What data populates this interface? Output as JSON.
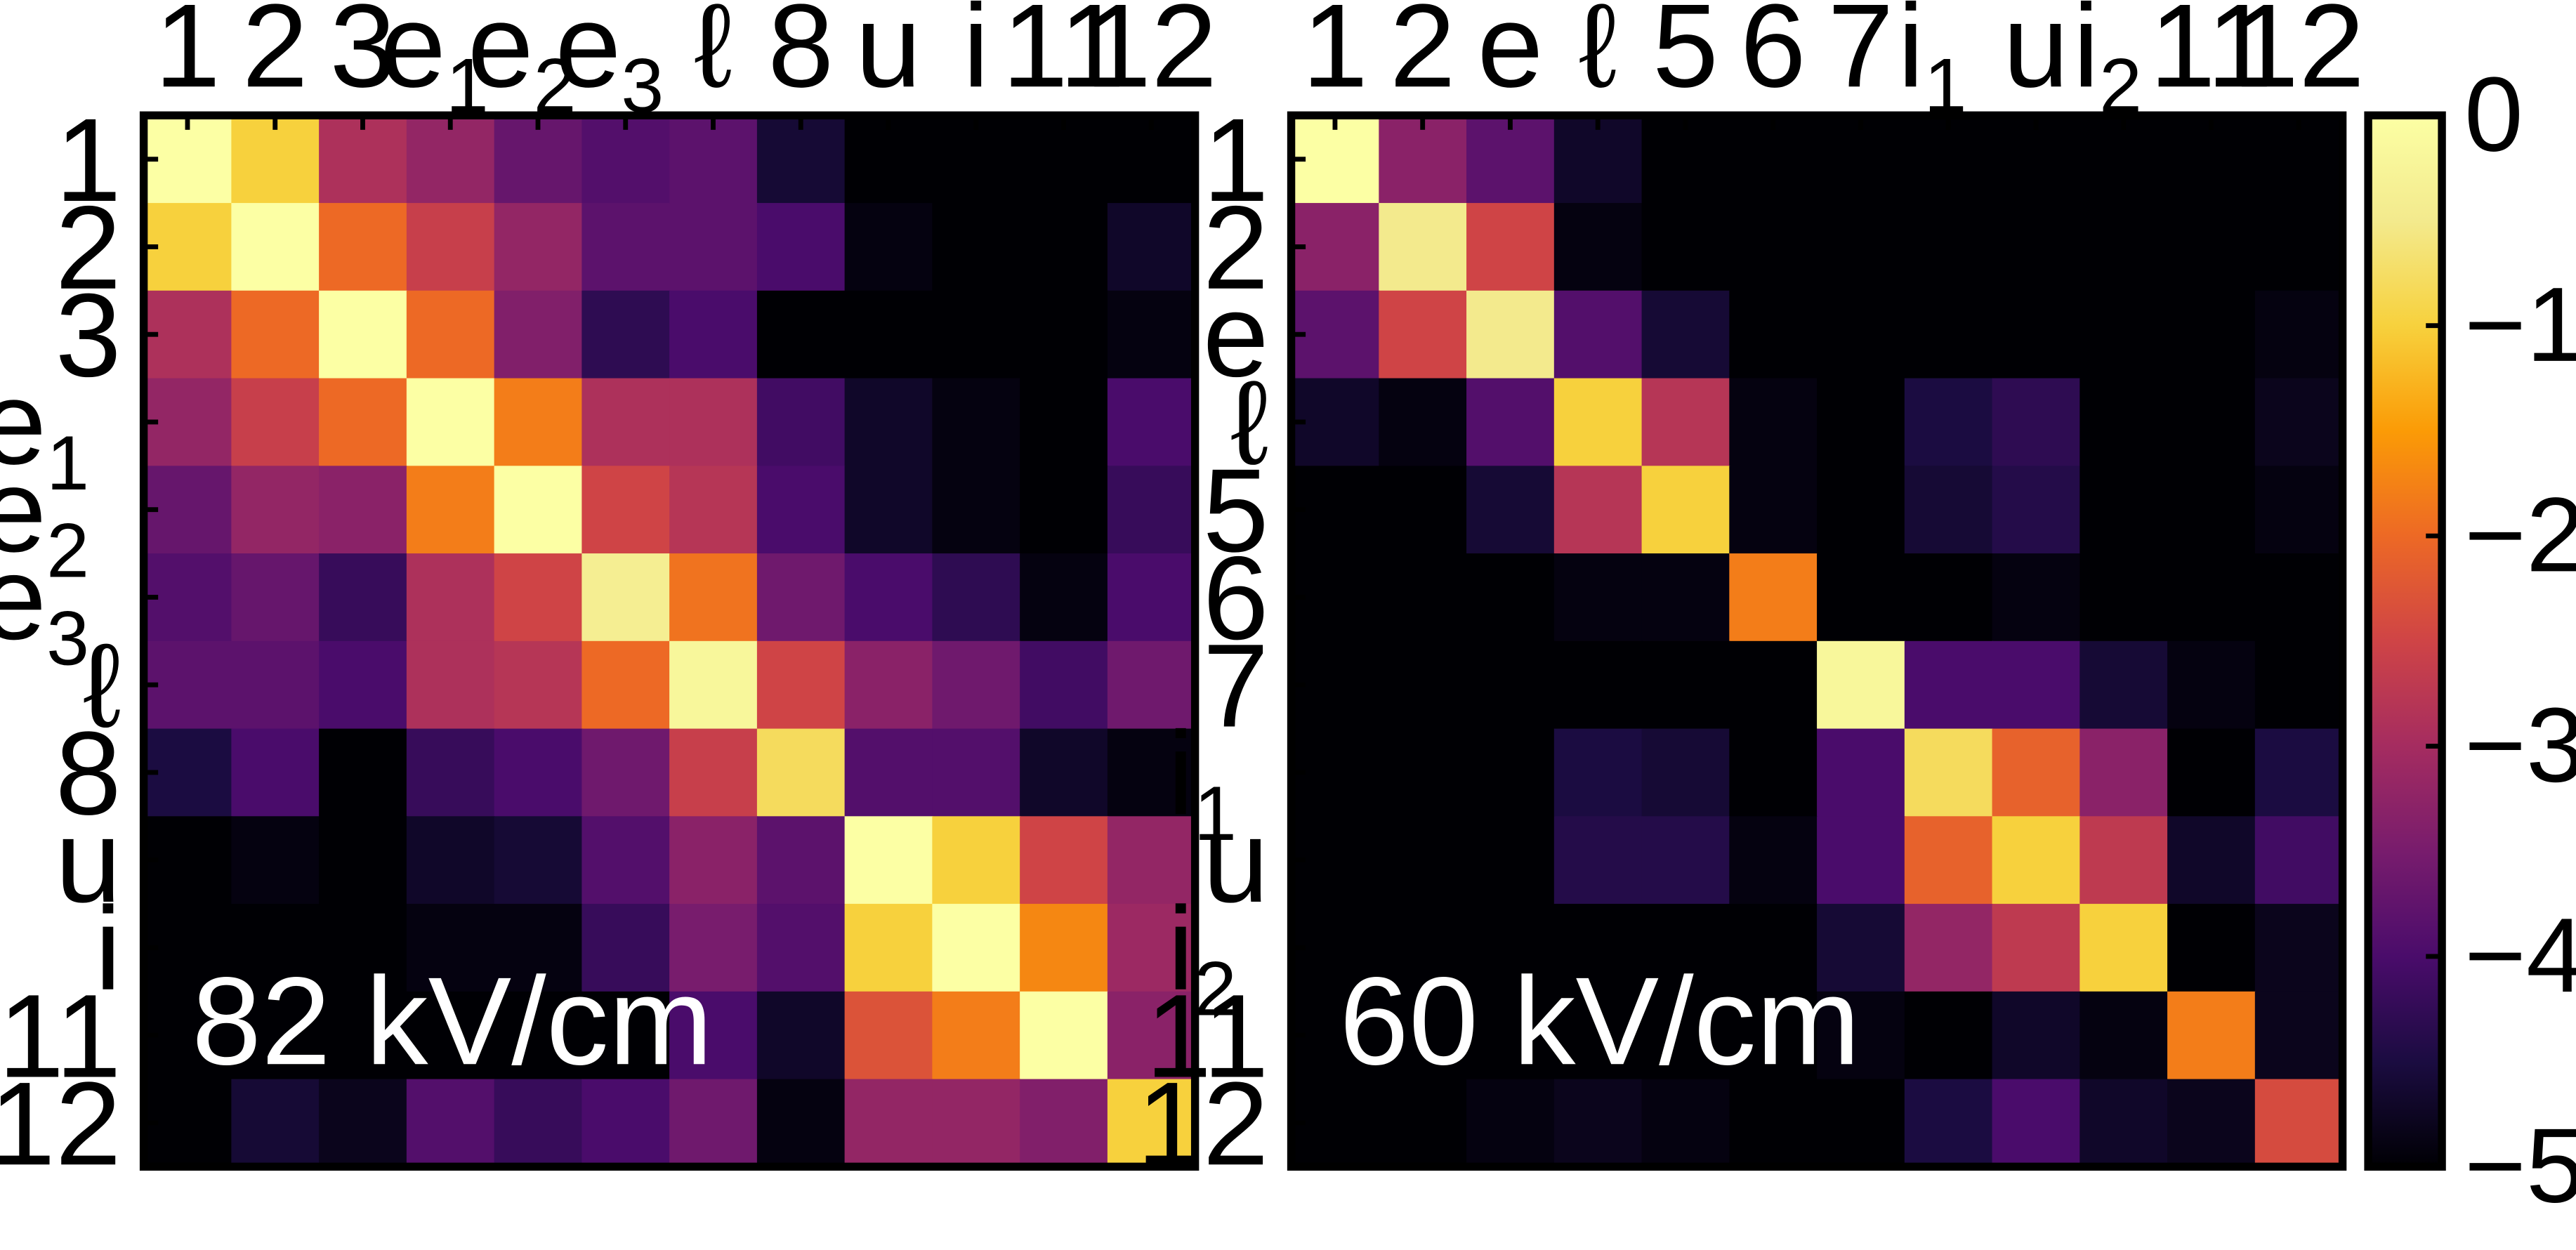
{
  "chart_data": [
    {
      "type": "heatmap",
      "annotation": "82 kV/cm",
      "x_labels": [
        [
          "1",
          ""
        ],
        [
          "2",
          ""
        ],
        [
          "3",
          ""
        ],
        [
          "e",
          "1"
        ],
        [
          "e",
          "2"
        ],
        [
          "e",
          "3"
        ],
        [
          "ℓ",
          ""
        ],
        [
          "8",
          ""
        ],
        [
          "u",
          ""
        ],
        [
          "i",
          ""
        ],
        [
          "11",
          ""
        ],
        [
          "12",
          ""
        ]
      ],
      "y_labels": [
        [
          "1",
          ""
        ],
        [
          "2",
          ""
        ],
        [
          "3",
          ""
        ],
        [
          "e",
          "1"
        ],
        [
          "e",
          "2"
        ],
        [
          "e",
          "3"
        ],
        [
          "ℓ",
          ""
        ],
        [
          "8",
          ""
        ],
        [
          "u",
          ""
        ],
        [
          "i",
          ""
        ],
        [
          "11",
          ""
        ],
        [
          "12",
          ""
        ]
      ],
      "values": [
        [
          0,
          -1,
          -2.9,
          -3.2,
          -3.7,
          -3.9,
          -3.8,
          -4.6,
          -5,
          -5,
          -5,
          -5
        ],
        [
          -1,
          0,
          -2,
          -2.6,
          -3.2,
          -3.8,
          -3.8,
          -4,
          -4.9,
          -5,
          -5,
          -4.7
        ],
        [
          -2.9,
          -2,
          0,
          -2,
          -3.4,
          -4.3,
          -4,
          -5,
          -5,
          -5,
          -5,
          -4.9
        ],
        [
          -3.2,
          -2.6,
          -2,
          0,
          -1.8,
          -2.9,
          -2.9,
          -4.1,
          -4.7,
          -4.9,
          -5,
          -4
        ],
        [
          -3.7,
          -3.2,
          -3.3,
          -1.8,
          0,
          -2.5,
          -2.8,
          -4,
          -4.7,
          -4.9,
          -5,
          -4.2
        ],
        [
          -3.9,
          -3.7,
          -4.2,
          -2.9,
          -2.5,
          -0.4,
          -1.9,
          -3.6,
          -4,
          -4.3,
          -4.9,
          -4
        ],
        [
          -3.8,
          -3.8,
          -4,
          -2.9,
          -2.8,
          -2,
          -0.2,
          -2.5,
          -3.3,
          -3.6,
          -4.1,
          -3.6
        ],
        [
          -4.5,
          -4,
          -5,
          -4.2,
          -4,
          -3.6,
          -2.6,
          -0.8,
          -3.9,
          -3.9,
          -4.7,
          -4.9
        ],
        [
          -5,
          -4.9,
          -5,
          -4.7,
          -4.6,
          -3.9,
          -3.3,
          -3.8,
          0,
          -1,
          -2.5,
          -3.2
        ],
        [
          -5,
          -5,
          -5,
          -4.9,
          -4.9,
          -4.2,
          -3.5,
          -3.9,
          -1,
          0,
          -1.7,
          -3.1
        ],
        [
          -5,
          -5,
          -5,
          -5,
          -5,
          -5,
          -4,
          -4.7,
          -2.3,
          -1.8,
          0,
          -3.3
        ],
        [
          -5,
          -4.6,
          -4.8,
          -3.9,
          -4.2,
          -4,
          -3.6,
          -4.9,
          -3.2,
          -3.2,
          -3.4,
          -1
        ]
      ]
    },
    {
      "type": "heatmap",
      "annotation": "60 kV/cm",
      "x_labels": [
        [
          "1",
          ""
        ],
        [
          "2",
          ""
        ],
        [
          "e",
          ""
        ],
        [
          "ℓ",
          ""
        ],
        [
          "5",
          ""
        ],
        [
          "6",
          ""
        ],
        [
          "7",
          ""
        ],
        [
          "i",
          "1"
        ],
        [
          "u",
          ""
        ],
        [
          "i",
          "2"
        ],
        [
          "11",
          ""
        ],
        [
          "12",
          ""
        ]
      ],
      "y_labels": [
        [
          "1",
          ""
        ],
        [
          "2",
          ""
        ],
        [
          "e",
          ""
        ],
        [
          "ℓ",
          ""
        ],
        [
          "5",
          ""
        ],
        [
          "6",
          ""
        ],
        [
          "7",
          ""
        ],
        [
          "i",
          "1"
        ],
        [
          "u",
          ""
        ],
        [
          "i",
          "2"
        ],
        [
          "11",
          ""
        ],
        [
          "12",
          ""
        ]
      ],
      "values": [
        [
          0,
          -3.3,
          -3.8,
          -4.7,
          -5,
          -5,
          -5,
          -5,
          -5,
          -5,
          -5,
          -5
        ],
        [
          -3.3,
          -0.5,
          -2.5,
          -4.9,
          -5,
          -5,
          -5,
          -5,
          -5,
          -5,
          -5,
          -5
        ],
        [
          -3.8,
          -2.5,
          -0.5,
          -3.9,
          -4.6,
          -5,
          -5,
          -5,
          -5,
          -5,
          -5,
          -4.9
        ],
        [
          -4.7,
          -4.9,
          -3.9,
          -1,
          -2.8,
          -4.9,
          -5,
          -4.5,
          -4.3,
          -5,
          -5,
          -4.8
        ],
        [
          -5,
          -5,
          -4.6,
          -2.8,
          -1,
          -4.9,
          -5,
          -4.6,
          -4.4,
          -5,
          -5,
          -4.9
        ],
        [
          -5,
          -5,
          -5,
          -4.9,
          -4.9,
          -1.8,
          -5,
          -5,
          -4.9,
          -5,
          -5,
          -5
        ],
        [
          -5,
          -5,
          -5,
          -5,
          -5,
          -5,
          -0.2,
          -4,
          -4,
          -4.6,
          -4.9,
          -5
        ],
        [
          -5,
          -5,
          -5,
          -4.5,
          -4.6,
          -5,
          -4,
          -0.8,
          -2.1,
          -3.3,
          -5,
          -4.5
        ],
        [
          -5,
          -5,
          -5,
          -4.4,
          -4.4,
          -4.9,
          -4,
          -2.1,
          -1,
          -2.7,
          -4.7,
          -4.1
        ],
        [
          -5,
          -5,
          -5,
          -5,
          -5,
          -5,
          -4.6,
          -3.2,
          -2.7,
          -1,
          -5,
          -4.8
        ],
        [
          -5,
          -5,
          -5,
          -5,
          -5,
          -5,
          -4.9,
          -5,
          -4.7,
          -4.9,
          -1.8,
          -4.8
        ],
        [
          -5,
          -5,
          -4.9,
          -4.8,
          -4.9,
          -5,
          -5,
          -4.5,
          -4,
          -4.7,
          -4.8,
          -2.4
        ]
      ]
    }
  ],
  "colorbar": {
    "colormap": "inferno",
    "vmin": -5,
    "vmax": 0,
    "ticks": [
      0,
      -1,
      -2,
      -3,
      -4,
      -5
    ],
    "tick_labels": [
      "0",
      "−1",
      "−2",
      "−3",
      "−4",
      "−5"
    ]
  }
}
